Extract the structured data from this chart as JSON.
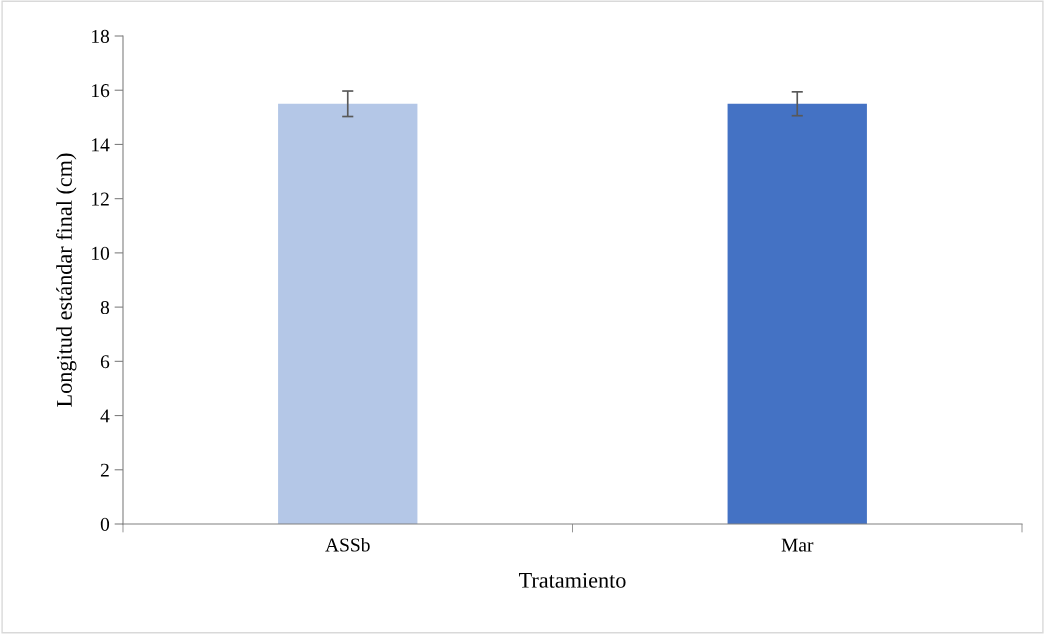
{
  "chart_data": {
    "type": "bar",
    "xlabel": "Tratamiento",
    "ylabel": "Longitud estándar final (cm)",
    "categories": [
      "ASSb",
      "Mar"
    ],
    "values": [
      15.5,
      15.5
    ],
    "colors": [
      "#b4c7e7",
      "#4472c4"
    ],
    "errors": [
      0.47,
      0.44
    ],
    "ylim": [
      0,
      18
    ],
    "yticks": [
      0,
      2,
      4,
      6,
      8,
      10,
      12,
      14,
      16,
      18
    ],
    "grid": false
  }
}
